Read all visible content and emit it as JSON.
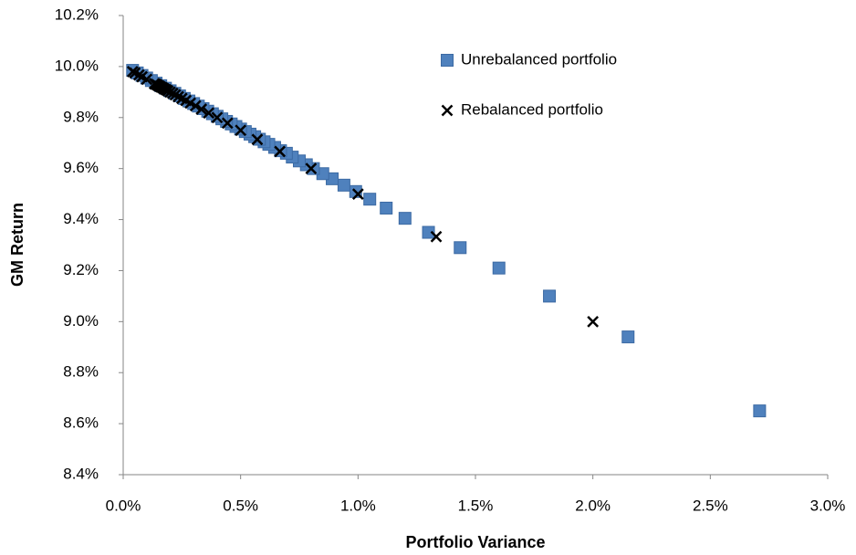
{
  "chart_data": {
    "type": "scatter",
    "x_label": "Portfolio Variance",
    "y_label": "GM Return",
    "xlim": [
      0,
      3
    ],
    "ylim": [
      8.4,
      10.2
    ],
    "xticks": [
      {
        "value": 0,
        "label": "0.0%"
      },
      {
        "value": 0.5,
        "label": "0.5%"
      },
      {
        "value": 1,
        "label": "1.0%"
      },
      {
        "value": 1.5,
        "label": "1.5%"
      },
      {
        "value": 2,
        "label": "2.0%"
      },
      {
        "value": 2.5,
        "label": "2.5%"
      },
      {
        "value": 3,
        "label": "3.0%"
      }
    ],
    "yticks": [
      {
        "value": 8.4,
        "label": "8.4%"
      },
      {
        "value": 8.6,
        "label": "8.6%"
      },
      {
        "value": 8.8,
        "label": "8.8%"
      },
      {
        "value": 9,
        "label": "9.0%"
      },
      {
        "value": 9.2,
        "label": "9.2%"
      },
      {
        "value": 9.4,
        "label": "9.4%"
      },
      {
        "value": 9.6,
        "label": "9.6%"
      },
      {
        "value": 9.8,
        "label": "9.8%"
      },
      {
        "value": 10,
        "label": "10.0%"
      },
      {
        "value": 10.2,
        "label": "10.2%"
      }
    ],
    "grid": false,
    "legend_position": "upper right",
    "series": [
      {
        "name": "Unrebalanced portfolio",
        "color": "#4f81bd",
        "marker": "square",
        "x": [
          2.71,
          2.15,
          1.815,
          1.6,
          1.435,
          1.3,
          1.2,
          1.12,
          1.05,
          0.99,
          0.94,
          0.89,
          0.85,
          0.81,
          0.78,
          0.75,
          0.72,
          0.695,
          0.67,
          0.645,
          0.62,
          0.6,
          0.58,
          0.56,
          0.54,
          0.52,
          0.5,
          0.48,
          0.46,
          0.44,
          0.42,
          0.4,
          0.38,
          0.36,
          0.34,
          0.32,
          0.3,
          0.28,
          0.26,
          0.24,
          0.22,
          0.2,
          0.18,
          0.16,
          0.14,
          0.12,
          0.1,
          0.08,
          0.06,
          0.04
        ],
        "values": [
          8.65,
          8.94,
          9.1,
          9.21,
          9.29,
          9.35,
          9.405,
          9.445,
          9.48,
          9.51,
          9.535,
          9.56,
          9.58,
          9.6,
          9.615,
          9.63,
          9.645,
          9.66,
          9.67,
          9.683,
          9.695,
          9.705,
          9.715,
          9.725,
          9.735,
          9.745,
          9.755,
          9.765,
          9.775,
          9.785,
          9.795,
          9.805,
          9.815,
          9.825,
          9.835,
          9.845,
          9.855,
          9.865,
          9.875,
          9.885,
          9.895,
          9.905,
          9.915,
          9.925,
          9.935,
          9.945,
          9.955,
          9.965,
          9.975,
          9.985
        ]
      },
      {
        "name": "Rebalanced portfolio",
        "color": "#000000",
        "marker": "x",
        "x": [
          2,
          1.333,
          1,
          0.8,
          0.667,
          0.571,
          0.5,
          0.444,
          0.4,
          0.364,
          0.333,
          0.308,
          0.286,
          0.267,
          0.25,
          0.235,
          0.222,
          0.211,
          0.2,
          0.19,
          0.182,
          0.174,
          0.167,
          0.16,
          0.154,
          0.148,
          0.143,
          0.138,
          0.133,
          0.1,
          0.08,
          0.067,
          0.05,
          0.04
        ],
        "values": [
          9,
          9.333,
          9.5,
          9.6,
          9.667,
          9.714,
          9.75,
          9.778,
          9.8,
          9.818,
          9.833,
          9.846,
          9.857,
          9.867,
          9.875,
          9.882,
          9.889,
          9.895,
          9.9,
          9.905,
          9.909,
          9.913,
          9.917,
          9.92,
          9.923,
          9.926,
          9.929,
          9.931,
          9.933,
          9.95,
          9.96,
          9.967,
          9.975,
          9.98
        ]
      }
    ]
  }
}
